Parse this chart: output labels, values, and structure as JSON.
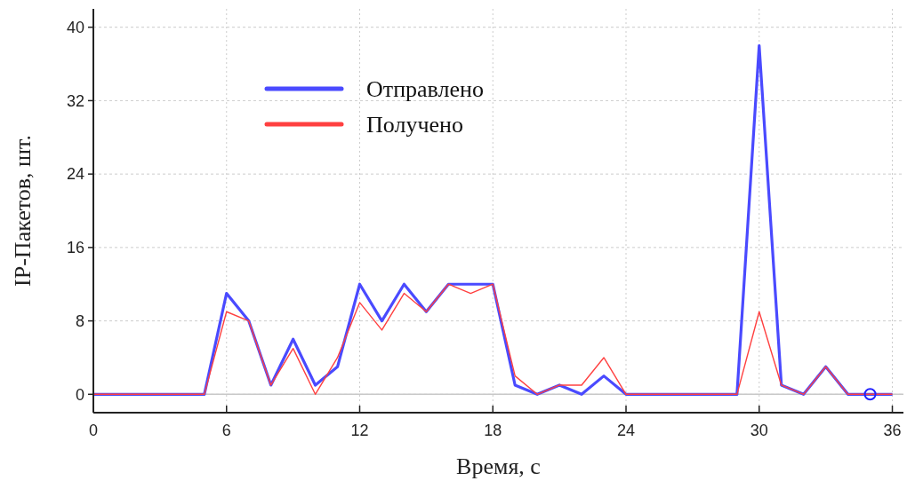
{
  "chart_data": {
    "type": "line",
    "xlabel": "Время, с",
    "ylabel": "IP-Пакетов, шт.",
    "x": [
      0,
      1,
      2,
      3,
      4,
      5,
      6,
      7,
      8,
      9,
      10,
      11,
      12,
      13,
      14,
      15,
      16,
      17,
      18,
      19,
      20,
      21,
      22,
      23,
      24,
      25,
      26,
      27,
      28,
      29,
      30,
      31,
      32,
      33,
      34,
      35,
      36
    ],
    "series": [
      {
        "name": "Отправлено",
        "color": "#4a4aff",
        "values": [
          0,
          0,
          0,
          0,
          0,
          0,
          11,
          8,
          1,
          6,
          1,
          3,
          12,
          8,
          12,
          9,
          12,
          12,
          12,
          1,
          0,
          1,
          0,
          2,
          0,
          0,
          0,
          0,
          0,
          0,
          38,
          1,
          0,
          3,
          0,
          0,
          0
        ]
      },
      {
        "name": "Получено",
        "color": "#ff4040",
        "values": [
          0,
          0,
          0,
          0,
          0,
          0,
          9,
          8,
          1,
          5,
          0,
          4,
          10,
          7,
          11,
          9,
          12,
          11,
          12,
          2,
          0,
          1,
          1,
          4,
          0,
          0,
          0,
          0,
          0,
          0,
          9,
          1,
          0,
          3,
          0,
          0,
          0
        ]
      },
      {
        "type": "scatter",
        "color": "#2020ff",
        "x": [
          35
        ],
        "values": [
          0
        ],
        "marker": "circle"
      }
    ],
    "xlim": [
      0,
      36.5
    ],
    "xticks": [
      0,
      6,
      12,
      18,
      24,
      30,
      36
    ],
    "ylim": [
      -2,
      42
    ],
    "yticks": [
      0,
      8,
      16,
      24,
      32,
      40
    ],
    "ref_lines": [
      {
        "axis": "y",
        "value": 0,
        "color": "#c8c8c8"
      }
    ],
    "grid": true,
    "legend": "top left",
    "marker": "none",
    "line_style": "solid"
  }
}
